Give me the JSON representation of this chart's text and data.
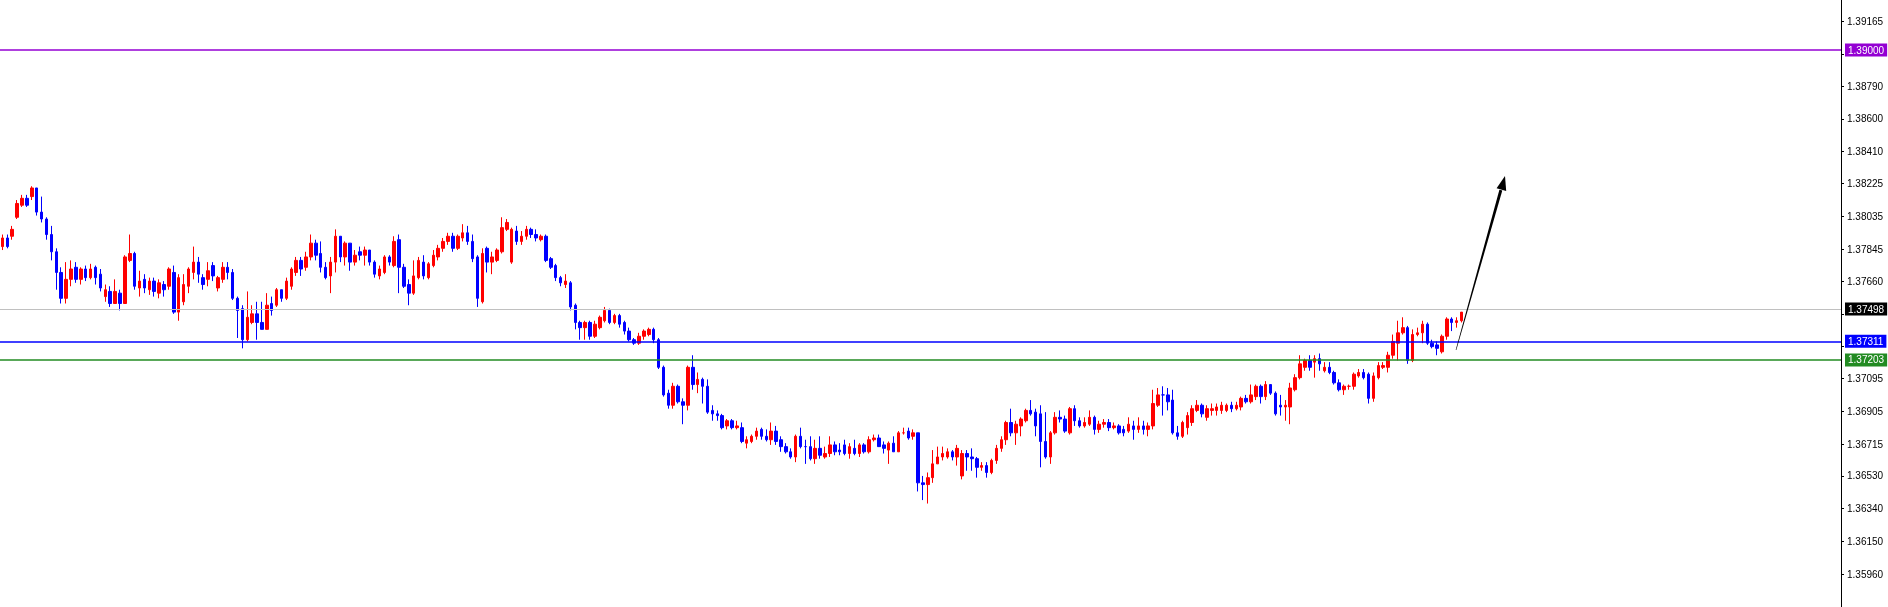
{
  "chart_data": {
    "type": "candlestick",
    "categories": [
      null,
      null,
      null,
      null,
      null,
      null,
      null,
      null,
      null,
      null,
      null,
      null,
      null,
      null,
      null,
      null,
      null,
      null,
      null,
      null,
      null,
      null,
      null,
      null,
      null,
      null,
      null,
      null,
      null,
      null,
      null,
      null,
      null,
      null,
      null,
      null,
      null,
      null,
      null,
      null,
      null,
      null,
      null,
      null,
      null,
      null,
      null,
      null,
      null,
      null,
      null,
      null,
      null,
      null,
      null,
      null,
      null,
      null,
      null,
      null,
      null,
      null,
      null,
      null,
      null,
      null,
      null,
      null,
      null,
      null,
      null,
      null,
      null,
      null,
      null,
      null,
      null,
      null,
      null,
      null,
      null,
      null,
      null,
      null,
      null,
      null,
      null,
      null,
      null,
      null,
      null,
      null,
      null,
      null,
      null,
      null,
      null,
      null,
      null,
      null,
      null,
      null,
      null,
      null,
      null,
      null,
      null,
      null,
      null,
      null,
      null,
      null,
      null,
      null,
      null,
      null,
      null,
      null,
      null,
      null,
      null,
      null,
      null,
      null,
      null,
      null,
      null,
      null,
      null,
      null,
      null,
      null,
      null,
      null,
      null,
      null,
      null,
      null,
      null,
      null,
      null,
      null,
      null,
      null,
      null,
      null,
      null,
      null,
      null,
      null,
      null,
      null,
      null,
      null,
      null,
      null,
      null,
      null,
      null,
      null,
      null,
      null,
      null,
      null,
      null,
      null,
      null,
      null,
      null,
      null,
      null,
      null,
      null,
      null,
      null,
      null,
      null,
      null,
      null,
      null,
      null,
      null,
      null,
      null,
      null,
      null,
      null,
      null,
      null,
      null,
      null,
      null,
      null,
      null,
      null,
      null,
      null,
      null,
      null,
      null,
      null,
      null,
      null,
      null,
      null,
      null,
      null,
      null,
      null,
      null,
      null,
      null,
      null,
      null,
      null,
      null,
      null,
      null,
      null,
      null,
      null,
      null,
      null,
      null,
      null,
      null,
      null,
      null,
      null,
      null,
      null,
      null,
      null,
      null,
      null,
      null,
      null,
      null,
      null,
      null,
      null,
      null,
      null,
      null,
      null,
      null,
      null,
      null,
      null,
      null,
      null,
      null,
      null,
      null,
      null,
      null,
      null,
      null,
      null,
      null,
      null,
      null,
      null,
      null,
      null,
      null,
      null,
      null,
      null,
      null,
      null,
      null,
      null,
      null,
      null,
      null,
      null,
      null,
      null,
      null,
      null,
      null,
      null,
      null,
      null,
      null,
      null,
      null,
      null,
      null,
      null,
      null,
      null,
      null,
      null,
      null,
      null,
      null,
      null,
      null,
      null,
      null,
      null,
      null,
      null,
      null,
      null,
      null,
      null,
      null,
      null,
      null,
      null,
      null,
      null,
      null,
      null,
      null,
      null,
      null,
      null,
      null,
      null,
      null,
      null,
      null,
      null,
      null,
      null,
      null,
      null,
      null,
      null,
      null,
      null,
      null,
      null,
      null,
      null,
      null,
      null,
      null,
      null,
      null,
      null,
      null,
      null,
      null,
      null,
      null,
      null,
      null,
      null,
      null,
      null,
      null,
      null,
      null,
      null,
      null,
      null,
      null,
      null,
      null,
      null,
      null,
      null,
      null,
      null,
      null,
      null,
      null,
      null,
      null,
      null,
      null
    ],
    "ohlc": [
      [
        1.3786,
        1.3793,
        1.3784,
        1.3791
      ],
      [
        1.3791,
        1.3793,
        1.3785,
        1.3786
      ],
      [
        1.3792,
        1.3798,
        1.379,
        1.3796
      ],
      [
        1.3803,
        1.3813,
        1.3802,
        1.3811
      ],
      [
        1.381,
        1.3816,
        1.3809,
        1.3814
      ],
      [
        1.3814,
        1.3816,
        1.3809,
        1.381
      ],
      [
        1.3815,
        1.3821,
        1.3813,
        1.382
      ],
      [
        1.382,
        1.382,
        1.3804,
        1.3806
      ],
      [
        1.3806,
        1.3815,
        1.38,
        1.3802
      ],
      [
        1.3802,
        1.3803,
        1.379,
        1.3793
      ],
      [
        1.3793,
        1.3798,
        1.3778,
        1.3783
      ],
      [
        1.3783,
        1.3785,
        1.3761,
        1.3771
      ],
      [
        1.3771,
        1.3774,
        1.3753,
        1.3756
      ],
      [
        1.3756,
        1.3777,
        1.3753,
        1.3767
      ],
      [
        1.3767,
        1.3778,
        1.3763,
        1.3773
      ],
      [
        1.3774,
        1.3777,
        1.3765,
        1.3767
      ],
      [
        1.3767,
        1.3774,
        1.3764,
        1.3773
      ],
      [
        1.3773,
        1.3775,
        1.3766,
        1.3768
      ],
      [
        1.3768,
        1.3776,
        1.3767,
        1.3773
      ],
      [
        1.3774,
        1.3775,
        1.3764,
        1.3768
      ],
      [
        1.377,
        1.3773,
        1.376,
        1.3762
      ],
      [
        1.3757,
        1.3764,
        1.3754,
        1.3761
      ],
      [
        1.376,
        1.3763,
        1.3751,
        1.3753
      ],
      [
        1.3753,
        1.3767,
        1.3753,
        1.376
      ],
      [
        1.3759,
        1.3761,
        1.3749,
        1.3753
      ],
      [
        1.3753,
        1.3781,
        1.3753,
        1.378
      ],
      [
        1.3778,
        1.3793,
        1.3777,
        1.3782
      ],
      [
        1.3782,
        1.3783,
        1.3761,
        1.3763
      ],
      [
        1.3762,
        1.3772,
        1.3757,
        1.3766
      ],
      [
        1.3767,
        1.377,
        1.3759,
        1.3762
      ],
      [
        1.3761,
        1.3768,
        1.3758,
        1.3766
      ],
      [
        1.3766,
        1.3768,
        1.3757,
        1.376
      ],
      [
        1.3759,
        1.3767,
        1.3756,
        1.3765
      ],
      [
        1.3764,
        1.3766,
        1.3757,
        1.3761
      ],
      [
        1.3763,
        1.3774,
        1.3761,
        1.3773
      ],
      [
        1.3771,
        1.3775,
        1.3747,
        1.3748
      ],
      [
        1.3748,
        1.377,
        1.3743,
        1.3768
      ],
      [
        1.3754,
        1.377,
        1.3752,
        1.3764
      ],
      [
        1.3763,
        1.3774,
        1.3759,
        1.3773
      ],
      [
        1.3771,
        1.3786,
        1.3767,
        1.3777
      ],
      [
        1.3777,
        1.378,
        1.3765,
        1.377
      ],
      [
        1.3768,
        1.377,
        1.3761,
        1.3764
      ],
      [
        1.3767,
        1.3777,
        1.3763,
        1.3772
      ],
      [
        1.3775,
        1.3777,
        1.3766,
        1.3769
      ],
      [
        1.3762,
        1.3769,
        1.376,
        1.3768
      ],
      [
        1.3767,
        1.3777,
        1.3765,
        1.3774
      ],
      [
        1.3774,
        1.3777,
        1.3767,
        1.3771
      ],
      [
        1.3771,
        1.3773,
        1.3755,
        1.3756
      ],
      [
        1.3756,
        1.3757,
        1.3733,
        1.3749
      ],
      [
        1.375,
        1.3752,
        1.3727,
        1.3732
      ],
      [
        1.3732,
        1.376,
        1.3731,
        1.3745
      ],
      [
        1.3742,
        1.3752,
        1.3741,
        1.3747
      ],
      [
        1.3747,
        1.3754,
        1.3732,
        1.3742
      ],
      [
        1.3742,
        1.3754,
        1.3738,
        1.3738
      ],
      [
        1.3738,
        1.3759,
        1.3738,
        1.3752
      ],
      [
        1.3753,
        1.3757,
        1.3746,
        1.3749
      ],
      [
        1.3752,
        1.3762,
        1.3751,
        1.3761
      ],
      [
        1.3761,
        1.3761,
        1.3754,
        1.3756
      ],
      [
        1.3756,
        1.3768,
        1.3755,
        1.3766
      ],
      [
        1.3763,
        1.3774,
        1.3761,
        1.3773
      ],
      [
        1.3771,
        1.378,
        1.3769,
        1.3778
      ],
      [
        1.3778,
        1.378,
        1.3769,
        1.3773
      ],
      [
        1.3774,
        1.3783,
        1.3772,
        1.378
      ],
      [
        1.378,
        1.3793,
        1.3778,
        1.3788
      ],
      [
        1.3788,
        1.379,
        1.3778,
        1.3781
      ],
      [
        1.3782,
        1.3789,
        1.3771,
        1.3774
      ],
      [
        1.3774,
        1.3777,
        1.3767,
        1.3768
      ],
      [
        1.3769,
        1.378,
        1.3759,
        1.3777
      ],
      [
        1.3777,
        1.3796,
        1.3771,
        1.3792
      ],
      [
        1.3792,
        1.3792,
        1.3777,
        1.378
      ],
      [
        1.378,
        1.3789,
        1.3775,
        1.3788
      ],
      [
        1.3788,
        1.3788,
        1.3772,
        1.3777
      ],
      [
        1.3777,
        1.3784,
        1.3775,
        1.3781
      ],
      [
        1.3783,
        1.3786,
        1.3778,
        1.3781
      ],
      [
        1.3781,
        1.3786,
        1.3775,
        1.3784
      ],
      [
        1.3784,
        1.3784,
        1.3775,
        1.3777
      ],
      [
        1.3777,
        1.3778,
        1.3768,
        1.377
      ],
      [
        1.3769,
        1.3775,
        1.3767,
        1.3773
      ],
      [
        1.3771,
        1.3781,
        1.377,
        1.378
      ],
      [
        1.378,
        1.3781,
        1.3775,
        1.3777
      ],
      [
        1.3775,
        1.3792,
        1.3774,
        1.3789
      ],
      [
        1.379,
        1.3793,
        1.3759,
        1.3774
      ],
      [
        1.3774,
        1.3776,
        1.3762,
        1.3763
      ],
      [
        1.3764,
        1.3767,
        1.3752,
        1.3759
      ],
      [
        1.3759,
        1.3778,
        1.3758,
        1.3769
      ],
      [
        1.3768,
        1.378,
        1.3767,
        1.3778
      ],
      [
        1.3777,
        1.3781,
        1.3767,
        1.3769
      ],
      [
        1.3768,
        1.3777,
        1.3767,
        1.3776
      ],
      [
        1.3775,
        1.3784,
        1.3774,
        1.3781
      ],
      [
        1.378,
        1.3787,
        1.3778,
        1.3785
      ],
      [
        1.3785,
        1.3791,
        1.3783,
        1.3789
      ],
      [
        1.3789,
        1.3794,
        1.3787,
        1.3792
      ],
      [
        1.3792,
        1.3794,
        1.3783,
        1.3785
      ],
      [
        1.3785,
        1.3793,
        1.3784,
        1.3792
      ],
      [
        1.3791,
        1.3799,
        1.3789,
        1.3794
      ],
      [
        1.3794,
        1.3798,
        1.3787,
        1.3789
      ],
      [
        1.3789,
        1.3793,
        1.3777,
        1.3779
      ],
      [
        1.378,
        1.3781,
        1.3751,
        1.3756
      ],
      [
        1.3754,
        1.3785,
        1.3753,
        1.3782
      ],
      [
        1.3785,
        1.3786,
        1.3771,
        1.3777
      ],
      [
        1.3777,
        1.3783,
        1.377,
        1.378
      ],
      [
        1.3778,
        1.3785,
        1.3777,
        1.3784
      ],
      [
        1.3783,
        1.3803,
        1.3782,
        1.3797
      ],
      [
        1.3796,
        1.3802,
        1.3795,
        1.38
      ],
      [
        1.3777,
        1.3797,
        1.3776,
        1.3796
      ],
      [
        1.3795,
        1.3798,
        1.3787,
        1.3789
      ],
      [
        1.3789,
        1.3795,
        1.3787,
        1.3792
      ],
      [
        1.3792,
        1.3798,
        1.379,
        1.3796
      ],
      [
        1.3796,
        1.3797,
        1.3791,
        1.3793
      ],
      [
        1.3793,
        1.3796,
        1.3789,
        1.3791
      ],
      [
        1.379,
        1.3793,
        1.3789,
        1.3792
      ],
      [
        1.3792,
        1.3793,
        1.3777,
        1.3778
      ],
      [
        1.3779,
        1.378,
        1.3773,
        1.3774
      ],
      [
        1.3775,
        1.3776,
        1.3766,
        1.3768
      ],
      [
        1.3768,
        1.3769,
        1.3763,
        1.3765
      ],
      [
        1.3764,
        1.377,
        1.3762,
        1.3766
      ],
      [
        1.3765,
        1.3766,
        1.3749,
        1.3751
      ],
      [
        1.3752,
        1.3753,
        1.3738,
        1.3742
      ],
      [
        1.3742,
        1.3743,
        1.3732,
        1.3739
      ],
      [
        1.3739,
        1.3743,
        1.3732,
        1.3742
      ],
      [
        1.3742,
        1.3743,
        1.3732,
        1.3734
      ],
      [
        1.3734,
        1.3743,
        1.3733,
        1.3741
      ],
      [
        1.3739,
        1.3746,
        1.3738,
        1.3745
      ],
      [
        1.3743,
        1.3751,
        1.3742,
        1.3749
      ],
      [
        1.3749,
        1.375,
        1.3741,
        1.3742
      ],
      [
        1.3742,
        1.3747,
        1.3741,
        1.3746
      ],
      [
        1.3746,
        1.3747,
        1.3739,
        1.3741
      ],
      [
        1.3742,
        1.3743,
        1.3735,
        1.3737
      ],
      [
        1.3737,
        1.3739,
        1.3731,
        1.3732
      ],
      [
        1.3732,
        1.3733,
        1.3729,
        1.373
      ],
      [
        1.373,
        1.3736,
        1.3729,
        1.3734
      ],
      [
        1.3734,
        1.3738,
        1.3732,
        1.3737
      ],
      [
        1.3735,
        1.3739,
        1.3734,
        1.3738
      ],
      [
        1.3738,
        1.3739,
        1.373,
        1.3732
      ],
      [
        1.3732,
        1.3733,
        1.3715,
        1.3716
      ],
      [
        1.3716,
        1.3717,
        1.3699,
        1.37
      ],
      [
        1.3701,
        1.3703,
        1.3692,
        1.3694
      ],
      [
        1.3694,
        1.3707,
        1.3692,
        1.3705
      ],
      [
        1.3705,
        1.3706,
        1.3695,
        1.3696
      ],
      [
        1.3696,
        1.3698,
        1.3683,
        1.3694
      ],
      [
        1.3694,
        1.3717,
        1.3691,
        1.3716
      ],
      [
        1.3716,
        1.3723,
        1.3703,
        1.3706
      ],
      [
        1.3706,
        1.3713,
        1.3701,
        1.3709
      ],
      [
        1.3709,
        1.371,
        1.3695,
        1.3705
      ],
      [
        1.3705,
        1.3709,
        1.3689,
        1.369
      ],
      [
        1.3691,
        1.3694,
        1.3685,
        1.3689
      ],
      [
        1.3689,
        1.3691,
        1.3685,
        1.3688
      ],
      [
        1.3688,
        1.3689,
        1.368,
        1.3681
      ],
      [
        1.3682,
        1.3686,
        1.368,
        1.3685
      ],
      [
        1.3685,
        1.3686,
        1.368,
        1.3681
      ],
      [
        1.3681,
        1.3685,
        1.368,
        1.3682
      ],
      [
        1.3681,
        1.3684,
        1.3672,
        1.3673
      ],
      [
        1.3672,
        1.3676,
        1.3669,
        1.3674
      ],
      [
        1.3673,
        1.3677,
        1.3672,
        1.3676
      ],
      [
        1.3676,
        1.3681,
        1.3674,
        1.3679
      ],
      [
        1.368,
        1.3681,
        1.3674,
        1.3676
      ],
      [
        1.3676,
        1.368,
        1.3673,
        1.3674
      ],
      [
        1.3674,
        1.3684,
        1.3671,
        1.3679
      ],
      [
        1.3679,
        1.3682,
        1.3671,
        1.3673
      ],
      [
        1.3674,
        1.3676,
        1.3667,
        1.367
      ],
      [
        1.367,
        1.3672,
        1.3666,
        1.3667
      ],
      [
        1.3667,
        1.3669,
        1.3663,
        1.3664
      ],
      [
        1.3664,
        1.3677,
        1.3661,
        1.3676
      ],
      [
        1.3676,
        1.3681,
        1.3669,
        1.367
      ],
      [
        1.367,
        1.3674,
        1.366,
        1.367
      ],
      [
        1.367,
        1.3676,
        1.3662,
        1.3663
      ],
      [
        1.3663,
        1.3674,
        1.366,
        1.3669
      ],
      [
        1.3669,
        1.3676,
        1.3663,
        1.3665
      ],
      [
        1.3664,
        1.367,
        1.3663,
        1.3666
      ],
      [
        1.3666,
        1.3676,
        1.3664,
        1.3671
      ],
      [
        1.3671,
        1.3673,
        1.3665,
        1.3667
      ],
      [
        1.3668,
        1.3672,
        1.3665,
        1.3667
      ],
      [
        1.3671,
        1.3674,
        1.3665,
        1.3666
      ],
      [
        1.3666,
        1.3672,
        1.3663,
        1.367
      ],
      [
        1.3669,
        1.3674,
        1.3665,
        1.3666
      ],
      [
        1.3666,
        1.3672,
        1.3664,
        1.3671
      ],
      [
        1.3671,
        1.3672,
        1.3666,
        1.3667
      ],
      [
        1.3667,
        1.3676,
        1.3666,
        1.3674
      ],
      [
        1.3674,
        1.3677,
        1.3673,
        1.3675
      ],
      [
        1.3675,
        1.3677,
        1.367,
        1.367
      ],
      [
        1.3671,
        1.3673,
        1.3666,
        1.3669
      ],
      [
        1.3668,
        1.3673,
        1.366,
        1.3672
      ],
      [
        1.3672,
        1.3676,
        1.3667,
        1.3667
      ],
      [
        1.3667,
        1.3679,
        1.3667,
        1.3678
      ],
      [
        1.3678,
        1.3681,
        1.3677,
        1.3678
      ],
      [
        1.3679,
        1.3681,
        1.3674,
        1.3675
      ],
      [
        1.3676,
        1.368,
        1.3674,
        1.3678
      ],
      [
        1.3678,
        1.3678,
        1.3644,
        1.3649
      ],
      [
        1.3649,
        1.3653,
        1.3639,
        1.3648
      ],
      [
        1.3648,
        1.3655,
        1.3637,
        1.3652
      ],
      [
        1.3652,
        1.3668,
        1.3649,
        1.366
      ],
      [
        1.366,
        1.367,
        1.366,
        1.3664
      ],
      [
        1.3664,
        1.367,
        1.3662,
        1.3666
      ],
      [
        1.3664,
        1.3669,
        1.3663,
        1.3667
      ],
      [
        1.3667,
        1.3668,
        1.3662,
        1.3664
      ],
      [
        1.3664,
        1.3671,
        1.3659,
        1.3669
      ],
      [
        1.3653,
        1.3668,
        1.3651,
        1.3666
      ],
      [
        1.3666,
        1.3668,
        1.3656,
        1.3664
      ],
      [
        1.3664,
        1.3669,
        1.3656,
        1.3663
      ],
      [
        1.3663,
        1.3664,
        1.3652,
        1.3658
      ],
      [
        1.3658,
        1.3661,
        1.3656,
        1.3659
      ],
      [
        1.3659,
        1.3661,
        1.3652,
        1.3655
      ],
      [
        1.3655,
        1.3663,
        1.3654,
        1.3662
      ],
      [
        1.3662,
        1.3671,
        1.366,
        1.3669
      ],
      [
        1.3669,
        1.3676,
        1.3667,
        1.3674
      ],
      [
        1.3674,
        1.3685,
        1.3671,
        1.3684
      ],
      [
        1.3684,
        1.3692,
        1.3676,
        1.3678
      ],
      [
        1.3678,
        1.3685,
        1.3671,
        1.3683
      ],
      [
        1.3682,
        1.3687,
        1.3676,
        1.3686
      ],
      [
        1.3685,
        1.3692,
        1.3684,
        1.3691
      ],
      [
        1.3691,
        1.3697,
        1.3688,
        1.3689
      ],
      [
        1.369,
        1.3692,
        1.3676,
        1.3682
      ],
      [
        1.3689,
        1.3694,
        1.3658,
        1.3673
      ],
      [
        1.3673,
        1.369,
        1.3663,
        1.3664
      ],
      [
        1.3664,
        1.3679,
        1.366,
        1.3678
      ],
      [
        1.3678,
        1.369,
        1.3677,
        1.3687
      ],
      [
        1.3687,
        1.3691,
        1.3684,
        1.3686
      ],
      [
        1.3686,
        1.3688,
        1.3678,
        1.3679
      ],
      [
        1.3678,
        1.3693,
        1.3677,
        1.3692
      ],
      [
        1.3692,
        1.3694,
        1.3682,
        1.3685
      ],
      [
        1.3685,
        1.3687,
        1.3681,
        1.3682
      ],
      [
        1.3682,
        1.3687,
        1.3681,
        1.3684
      ],
      [
        1.3683,
        1.3691,
        1.3682,
        1.3687
      ],
      [
        1.3687,
        1.3688,
        1.3677,
        1.368
      ],
      [
        1.368,
        1.3685,
        1.3678,
        1.3683
      ],
      [
        1.3683,
        1.3686,
        1.3681,
        1.3684
      ],
      [
        1.3684,
        1.3686,
        1.3679,
        1.3681
      ],
      [
        1.3681,
        1.3684,
        1.368,
        1.3682
      ],
      [
        1.3682,
        1.3683,
        1.3677,
        1.3678
      ],
      [
        1.368,
        1.3682,
        1.3676,
        1.3678
      ],
      [
        1.3679,
        1.3687,
        1.3678,
        1.3683
      ],
      [
        1.3682,
        1.3685,
        1.3674,
        1.368
      ],
      [
        1.368,
        1.3687,
        1.3678,
        1.3682
      ],
      [
        1.3682,
        1.3685,
        1.3677,
        1.368
      ],
      [
        1.368,
        1.3684,
        1.3676,
        1.3682
      ],
      [
        1.3682,
        1.3703,
        1.368,
        1.3695
      ],
      [
        1.3694,
        1.3704,
        1.3693,
        1.37
      ],
      [
        1.37,
        1.3705,
        1.3688,
        1.37
      ],
      [
        1.37,
        1.3704,
        1.3691,
        1.3696
      ],
      [
        1.3697,
        1.3703,
        1.3677,
        1.3678
      ],
      [
        1.3678,
        1.3682,
        1.3674,
        1.3676
      ],
      [
        1.3676,
        1.3685,
        1.3675,
        1.3684
      ],
      [
        1.3681,
        1.369,
        1.3677,
        1.3688
      ],
      [
        1.3684,
        1.3694,
        1.3682,
        1.3692
      ],
      [
        1.3691,
        1.3697,
        1.369,
        1.3694
      ],
      [
        1.3694,
        1.3695,
        1.3687,
        1.3689
      ],
      [
        1.3687,
        1.3694,
        1.3685,
        1.3692
      ],
      [
        1.3691,
        1.3695,
        1.3688,
        1.3692
      ],
      [
        1.3691,
        1.3695,
        1.3688,
        1.3693
      ],
      [
        1.3691,
        1.3696,
        1.3689,
        1.3694
      ],
      [
        1.3691,
        1.3695,
        1.369,
        1.3694
      ],
      [
        1.3694,
        1.3696,
        1.369,
        1.3692
      ],
      [
        1.3692,
        1.3696,
        1.3691,
        1.3694
      ],
      [
        1.3693,
        1.3699,
        1.3691,
        1.3698
      ],
      [
        1.3698,
        1.37,
        1.3695,
        1.3696
      ],
      [
        1.3696,
        1.3706,
        1.3695,
        1.37
      ],
      [
        1.3699,
        1.3706,
        1.3697,
        1.3705
      ],
      [
        1.3705,
        1.3706,
        1.3695,
        1.3699
      ],
      [
        1.3699,
        1.3708,
        1.3697,
        1.3706
      ],
      [
        1.3706,
        1.3706,
        1.37,
        1.3701
      ],
      [
        1.3701,
        1.3702,
        1.3688,
        1.3689
      ],
      [
        1.3694,
        1.37,
        1.3688,
        1.3693
      ],
      [
        1.3693,
        1.3697,
        1.3685,
        1.3694
      ],
      [
        1.3693,
        1.3707,
        1.3683,
        1.3704
      ],
      [
        1.3703,
        1.3712,
        1.3702,
        1.371
      ],
      [
        1.371,
        1.3723,
        1.3709,
        1.3718
      ],
      [
        1.3716,
        1.3721,
        1.3714,
        1.372
      ],
      [
        1.372,
        1.3723,
        1.3714,
        1.3716
      ],
      [
        1.3719,
        1.3723,
        1.371,
        1.3721
      ],
      [
        1.3721,
        1.3724,
        1.3714,
        1.3718
      ],
      [
        1.3714,
        1.3719,
        1.3713,
        1.3716
      ],
      [
        1.3716,
        1.3719,
        1.3712,
        1.3713
      ],
      [
        1.3713,
        1.3714,
        1.3706,
        1.3707
      ],
      [
        1.3707,
        1.3709,
        1.3702,
        1.3703
      ],
      [
        1.3703,
        1.3706,
        1.37,
        1.3705
      ],
      [
        1.3705,
        1.3706,
        1.3703,
        1.3705
      ],
      [
        1.3705,
        1.3713,
        1.3703,
        1.3712
      ],
      [
        1.3711,
        1.3715,
        1.371,
        1.3713
      ],
      [
        1.3713,
        1.3715,
        1.3709,
        1.371
      ],
      [
        1.3712,
        1.3713,
        1.3695,
        1.3698
      ],
      [
        1.3698,
        1.3713,
        1.3696,
        1.3711
      ],
      [
        1.371,
        1.3719,
        1.3709,
        1.3717
      ],
      [
        1.3716,
        1.3719,
        1.3715,
        1.3717
      ],
      [
        1.3716,
        1.3725,
        1.3713,
        1.3723
      ],
      [
        1.3723,
        1.3735,
        1.3721,
        1.3731
      ],
      [
        1.373,
        1.3743,
        1.372,
        1.3736
      ],
      [
        1.3736,
        1.3745,
        1.3735,
        1.3739
      ],
      [
        1.3739,
        1.374,
        1.3718,
        1.372
      ],
      [
        1.372,
        1.3738,
        1.3719,
        1.3735
      ],
      [
        1.3735,
        1.3739,
        1.3734,
        1.3736
      ],
      [
        1.3736,
        1.3743,
        1.373,
        1.3741
      ],
      [
        1.3741,
        1.3742,
        1.3729,
        1.373
      ],
      [
        1.373,
        1.3732,
        1.3727,
        1.3728
      ],
      [
        1.3729,
        1.3731,
        1.3723,
        1.3727
      ],
      [
        1.3725,
        1.3735,
        1.3724,
        1.3734
      ],
      [
        1.3734,
        1.3745,
        1.3732,
        1.3744
      ],
      [
        1.3744,
        1.3745,
        1.3737,
        1.3742
      ],
      [
        1.3742,
        1.3745,
        1.3739,
        1.3743
      ],
      [
        1.3743,
        1.3748,
        1.3742,
        1.3748
      ],
      null,
      null,
      null,
      null,
      null,
      null,
      null,
      null,
      null,
      null,
      null,
      null,
      null,
      null,
      null,
      null,
      null,
      null,
      null,
      null,
      null,
      null,
      null,
      null,
      null,
      null,
      null,
      null,
      null,
      null,
      null,
      null,
      null,
      null,
      null,
      null,
      null,
      null,
      null,
      null,
      null,
      null,
      null,
      null,
      null,
      null,
      null,
      null,
      null,
      null,
      null,
      null,
      null,
      null,
      null,
      null,
      null,
      null,
      null,
      null,
      null,
      null,
      null,
      null,
      null,
      null,
      null,
      null,
      null,
      null,
      null,
      null,
      null,
      null,
      null,
      null,
      null
    ],
    "colors": [
      "#ff0000",
      "#0000ff",
      "#ff0000",
      "#ff0000",
      "#ff0000",
      "#0000ff",
      "#ff0000",
      "#0000ff",
      "#0000ff",
      "#0000ff",
      "#0000ff",
      "#0000ff",
      "#0000ff",
      "#ff0000",
      "#ff0000",
      "#0000ff",
      "#ff0000",
      "#0000ff",
      "#ff0000",
      "#0000ff",
      "#0000ff",
      "#ff0000",
      "#0000ff",
      "#ff0000",
      "#0000ff",
      "#ff0000",
      "#ff0000",
      "#0000ff",
      "#ff0000",
      "#0000ff",
      "#ff0000",
      "#0000ff",
      "#ff0000",
      "#0000ff",
      "#ff0000",
      "#0000ff",
      "#ff0000",
      "#ff0000",
      "#ff0000",
      "#ff0000",
      "#0000ff",
      "#0000ff",
      "#ff0000",
      "#0000ff",
      "#ff0000",
      "#ff0000",
      "#0000ff",
      "#0000ff",
      "#0000ff",
      "#0000ff",
      "#ff0000",
      "#ff0000",
      "#0000ff",
      "#0000ff",
      "#ff0000",
      "#0000ff",
      "#ff0000",
      "#0000ff",
      "#ff0000",
      "#ff0000",
      "#ff0000",
      "#0000ff",
      "#ff0000",
      "#ff0000",
      "#0000ff",
      "#0000ff",
      "#0000ff",
      "#ff0000",
      "#ff0000",
      "#0000ff",
      "#ff0000",
      "#0000ff",
      "#ff0000",
      "#0000ff",
      "#ff0000",
      "#0000ff",
      "#0000ff",
      "#ff0000",
      "#ff0000",
      "#0000ff",
      "#ff0000",
      "#0000ff",
      "#0000ff",
      "#0000ff",
      "#ff0000",
      "#ff0000",
      "#0000ff",
      "#ff0000",
      "#ff0000",
      "#ff0000",
      "#ff0000",
      "#ff0000",
      "#0000ff",
      "#ff0000",
      "#ff0000",
      "#0000ff",
      "#0000ff",
      "#0000ff",
      "#ff0000",
      "#0000ff",
      "#ff0000",
      "#ff0000",
      "#ff0000",
      "#ff0000",
      "#ff0000",
      "#0000ff",
      "#ff0000",
      "#ff0000",
      "#0000ff",
      "#0000ff",
      "#ff0000",
      "#0000ff",
      "#0000ff",
      "#0000ff",
      "#0000ff",
      "#ff0000",
      "#0000ff",
      "#0000ff",
      "#0000ff",
      "#ff0000",
      "#0000ff",
      "#ff0000",
      "#ff0000",
      "#ff0000",
      "#0000ff",
      "#ff0000",
      "#0000ff",
      "#0000ff",
      "#0000ff",
      "#0000ff",
      "#ff0000",
      "#ff0000",
      "#ff0000",
      "#0000ff",
      "#0000ff",
      "#0000ff",
      "#0000ff",
      "#ff0000",
      "#0000ff",
      "#0000ff",
      "#ff0000",
      "#0000ff",
      "#ff0000",
      "#0000ff",
      "#0000ff",
      "#0000ff",
      "#0000ff",
      "#0000ff",
      "#ff0000",
      "#0000ff",
      "#ff0000",
      "#0000ff",
      "#ff0000",
      "#ff0000",
      "#ff0000",
      "#0000ff",
      "#0000ff",
      "#ff0000",
      "#0000ff",
      "#0000ff",
      "#0000ff",
      "#0000ff",
      "#ff0000",
      "#0000ff",
      "#0000ff",
      "#0000ff",
      "#ff0000",
      "#0000ff",
      "#ff0000",
      "#ff0000",
      "#0000ff",
      "#0000ff",
      "#0000ff",
      "#ff0000",
      "#0000ff",
      "#ff0000",
      "#0000ff",
      "#ff0000",
      "#ff0000",
      "#0000ff",
      "#0000ff",
      "#ff0000",
      "#0000ff",
      "#ff0000",
      "#ff0000",
      "#0000ff",
      "#ff0000",
      "#0000ff",
      "#0000ff",
      "#ff0000",
      "#ff0000",
      "#ff0000",
      "#ff0000",
      "#ff0000",
      "#0000ff",
      "#ff0000",
      "#ff0000",
      "#0000ff",
      "#0000ff",
      "#0000ff",
      "#ff0000",
      "#0000ff",
      "#ff0000",
      "#ff0000",
      "#ff0000",
      "#ff0000",
      "#0000ff",
      "#ff0000",
      "#ff0000",
      "#ff0000",
      "#0000ff",
      "#0000ff",
      "#0000ff",
      "#0000ff",
      "#ff0000",
      "#ff0000",
      "#0000ff",
      "#0000ff",
      "#ff0000",
      "#0000ff",
      "#0000ff",
      "#ff0000",
      "#ff0000",
      "#0000ff",
      "#ff0000",
      "#ff0000",
      "#0000ff",
      "#ff0000",
      "#0000ff",
      "#0000ff",
      "#ff0000",
      "#0000ff",
      "#ff0000",
      "#0000ff",
      "#ff0000",
      "#ff0000",
      "#ff0000",
      "#0000ff",
      "#0000ff",
      "#0000ff",
      "#0000ff",
      "#ff0000",
      "#ff0000",
      "#ff0000",
      "#ff0000",
      "#0000ff",
      "#ff0000",
      "#ff0000",
      "#ff0000",
      "#ff0000",
      "#ff0000",
      "#0000ff",
      "#ff0000",
      "#ff0000",
      "#0000ff",
      "#ff0000",
      "#ff0000",
      "#0000ff",
      "#ff0000",
      "#0000ff",
      "#0000ff",
      "#0000ff",
      "#ff0000",
      "#ff0000",
      "#ff0000",
      "#ff0000",
      "#ff0000",
      "#0000ff",
      "#ff0000",
      "#0000ff",
      "#ff0000",
      "#0000ff",
      "#0000ff",
      "#0000ff",
      "#ff0000",
      "#ff0000",
      "#ff0000",
      "#ff0000",
      "#0000ff",
      "#0000ff",
      "#ff0000",
      "#ff0000",
      "#ff0000",
      "#ff0000",
      "#ff0000",
      "#ff0000",
      "#ff0000",
      "#0000ff",
      "#ff0000",
      "#ff0000",
      "#ff0000",
      "#0000ff",
      "#0000ff",
      "#0000ff",
      "#ff0000",
      "#ff0000",
      "#0000ff",
      "#ff0000",
      "#ff0000",
      null,
      null,
      null,
      null,
      null,
      null,
      null,
      null,
      null,
      null,
      null,
      null,
      null,
      null,
      null,
      null,
      null,
      null,
      null,
      null,
      null,
      null,
      null,
      null,
      null,
      null,
      null,
      null,
      null,
      null,
      null,
      null,
      null,
      null,
      null,
      null,
      null,
      null,
      null,
      null,
      null,
      null,
      null,
      null,
      null,
      null,
      null,
      null,
      null,
      null,
      null,
      null,
      null,
      null,
      null,
      null,
      null,
      null,
      null,
      null,
      null,
      null,
      null,
      null,
      null,
      null,
      null,
      null,
      null,
      null,
      null,
      null,
      null,
      null,
      null,
      null,
      null
    ],
    "ylim": [
      1.3577,
      1.3929
    ],
    "yticks": [
      {
        "value": 1.39165,
        "label": "1.39165"
      },
      {
        "value": 1.38975,
        "label": null
      },
      {
        "value": 1.3879,
        "label": "1.38790"
      },
      {
        "value": 1.386,
        "label": "1.38600"
      },
      {
        "value": 1.3841,
        "label": "1.38410"
      },
      {
        "value": 1.38225,
        "label": "1.38225"
      },
      {
        "value": 1.38035,
        "label": "1.38035"
      },
      {
        "value": 1.37845,
        "label": "1.37845"
      },
      {
        "value": 1.3766,
        "label": "1.37660"
      },
      {
        "value": 1.3747,
        "label": null
      },
      {
        "value": 1.3728,
        "label": null
      },
      {
        "value": 1.37095,
        "label": "1.37095"
      },
      {
        "value": 1.36905,
        "label": "1.36905"
      },
      {
        "value": 1.36715,
        "label": "1.36715"
      },
      {
        "value": 1.3653,
        "label": "1.36530"
      },
      {
        "value": 1.3634,
        "label": "1.36340"
      },
      {
        "value": 1.3615,
        "label": "1.36150"
      },
      {
        "value": 1.3596,
        "label": "1.35960"
      }
    ],
    "tick_labels": "y",
    "ref_lines": [
      {
        "axis": "y",
        "value": 1.39,
        "label": "1.39000",
        "color": "#9400d3"
      },
      {
        "axis": "y",
        "value": 1.37498,
        "label": "1.37498",
        "color": "#c0c0c0"
      },
      {
        "axis": "y",
        "value": 1.37311,
        "label": "1.37311",
        "color": "#0000ff"
      },
      {
        "axis": "y",
        "value": 1.37203,
        "label": "1.37203",
        "color": "#228b22"
      }
    ],
    "grid": false
  }
}
